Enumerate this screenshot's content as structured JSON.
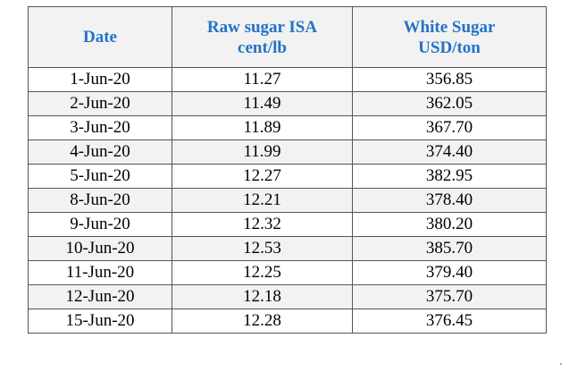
{
  "table": {
    "headers": [
      [
        "Date"
      ],
      [
        "Raw sugar ISA",
        "cent/lb"
      ],
      [
        "White Sugar",
        "USD/ton"
      ]
    ],
    "rows": [
      [
        "1-Jun-20",
        "11.27",
        "356.85"
      ],
      [
        "2-Jun-20",
        "11.49",
        "362.05"
      ],
      [
        "3-Jun-20",
        "11.89",
        "367.70"
      ],
      [
        "4-Jun-20",
        "11.99",
        "374.40"
      ],
      [
        "5-Jun-20",
        "12.27",
        "382.95"
      ],
      [
        "8-Jun-20",
        "12.21",
        "378.40"
      ],
      [
        "9-Jun-20",
        "12.32",
        "380.20"
      ],
      [
        "10-Jun-20",
        "12.53",
        "385.70"
      ],
      [
        "11-Jun-20",
        "12.25",
        "379.40"
      ],
      [
        "12-Jun-20",
        "12.18",
        "375.70"
      ],
      [
        "15-Jun-20",
        "12.28",
        "376.45"
      ]
    ]
  },
  "footer": {
    "mark": "."
  },
  "colors": {
    "header_text": "#2472c8",
    "stripe": "#f2f2f2",
    "border": "#555555"
  }
}
